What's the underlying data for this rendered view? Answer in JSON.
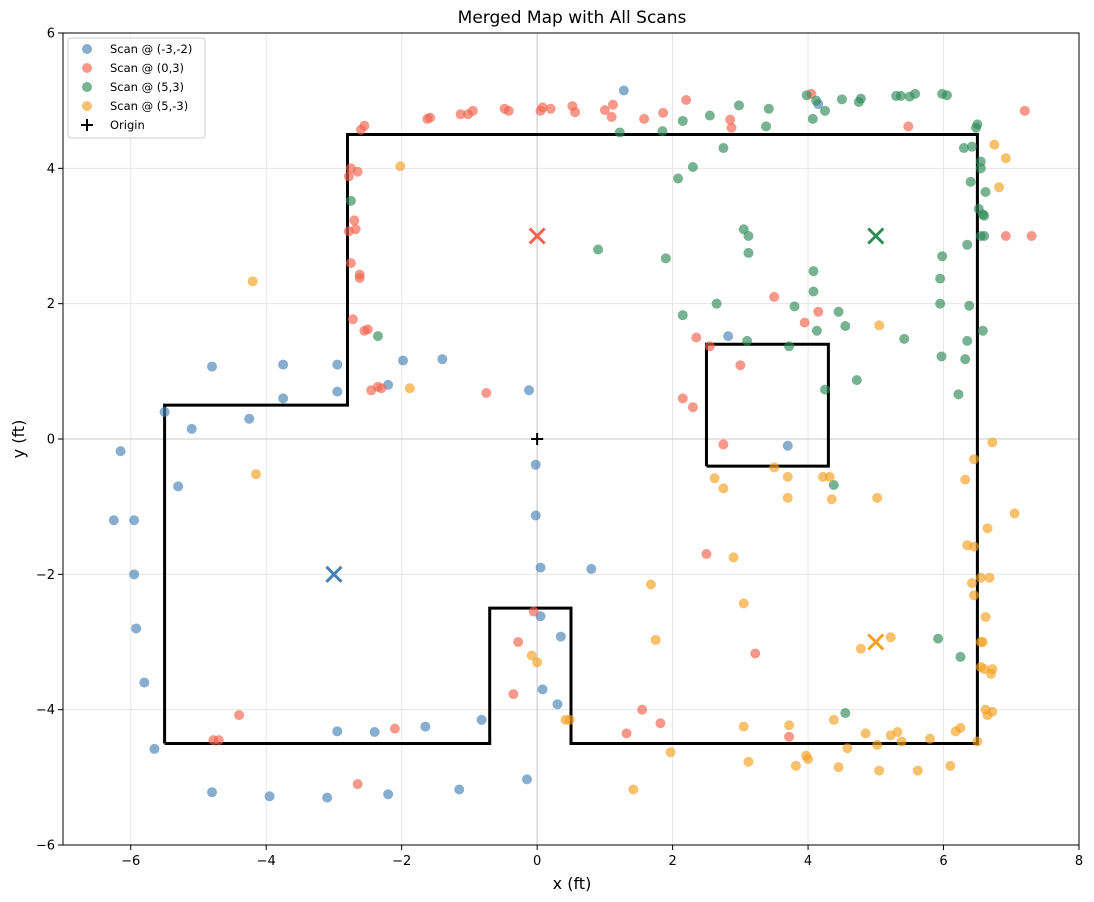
{
  "chart_data": {
    "type": "scatter",
    "title": "Merged Map with All Scans",
    "xlabel": "x (ft)",
    "ylabel": "y (ft)",
    "xlim": [
      -7,
      8
    ],
    "ylim": [
      -6,
      6
    ],
    "xticks": [
      -6,
      -4,
      -2,
      0,
      2,
      4,
      6,
      8
    ],
    "yticks": [
      -6,
      -4,
      -2,
      0,
      2,
      4,
      6
    ],
    "grid": true,
    "legend_position": "top-left",
    "colors": {
      "scan1": "#4682b4",
      "scan2": "#f4614d",
      "scan3": "#2e8b57",
      "scan4": "#f5a020",
      "walls": "#000000"
    },
    "walls": [
      [
        [
          -5.5,
          -4.5
        ],
        [
          -0.7,
          -4.5
        ],
        [
          -0.7,
          -2.5
        ],
        [
          0.5,
          -2.5
        ],
        [
          0.5,
          -4.5
        ],
        [
          6.5,
          -4.5
        ],
        [
          6.5,
          4.5
        ],
        [
          -2.8,
          4.5
        ],
        [
          -2.8,
          0.5
        ],
        [
          -5.5,
          0.5
        ],
        [
          -5.5,
          -4.5
        ]
      ],
      [
        [
          2.5,
          -0.4
        ],
        [
          4.3,
          -0.4
        ],
        [
          4.3,
          1.4
        ],
        [
          2.5,
          1.4
        ],
        [
          2.5,
          -0.4
        ]
      ]
    ],
    "series": [
      {
        "name": "Scan @ (-3,-2)",
        "scan_position": [
          -3,
          -2
        ],
        "points": [
          [
            -5.5,
            0.4
          ],
          [
            -5.1,
            0.15
          ],
          [
            -4.8,
            1.07
          ],
          [
            -4.25,
            0.3
          ],
          [
            -3.75,
            1.1
          ],
          [
            -3.75,
            0.6
          ],
          [
            -2.95,
            1.1
          ],
          [
            -2.95,
            0.7
          ],
          [
            -2.2,
            0.8
          ],
          [
            -1.98,
            1.16
          ],
          [
            -1.4,
            1.18
          ],
          [
            -0.12,
            0.72
          ],
          [
            -6.15,
            -0.18
          ],
          [
            -5.3,
            -0.7
          ],
          [
            -6.25,
            -1.2
          ],
          [
            -5.95,
            -1.2
          ],
          [
            -5.95,
            -2.0
          ],
          [
            -5.92,
            -2.8
          ],
          [
            -5.8,
            -3.6
          ],
          [
            -5.65,
            -4.58
          ],
          [
            -4.8,
            -5.22
          ],
          [
            -3.95,
            -5.28
          ],
          [
            -3.1,
            -5.3
          ],
          [
            -2.2,
            -5.25
          ],
          [
            -1.15,
            -5.18
          ],
          [
            -0.15,
            -5.03
          ],
          [
            -2.95,
            -4.32
          ],
          [
            -2.4,
            -4.33
          ],
          [
            -1.65,
            -4.25
          ],
          [
            -0.82,
            -4.15
          ],
          [
            0.08,
            -3.7
          ],
          [
            0.3,
            -3.92
          ],
          [
            0.35,
            -2.92
          ],
          [
            0.05,
            -2.62
          ],
          [
            0.05,
            -1.9
          ],
          [
            -0.02,
            -0.38
          ],
          [
            -0.02,
            -1.13
          ],
          [
            0.8,
            -1.92
          ],
          [
            1.28,
            5.15
          ],
          [
            2.82,
            1.52
          ],
          [
            3.7,
            -0.1
          ],
          [
            4.15,
            4.95
          ]
        ]
      },
      {
        "name": "Scan @ (0,3)",
        "scan_position": [
          0,
          3
        ],
        "points": [
          [
            -2.55,
            4.63
          ],
          [
            -2.6,
            4.57
          ],
          [
            -1.62,
            4.73
          ],
          [
            -1.58,
            4.75
          ],
          [
            -1.13,
            4.8
          ],
          [
            -1.02,
            4.8
          ],
          [
            -0.95,
            4.85
          ],
          [
            -0.48,
            4.88
          ],
          [
            -0.42,
            4.85
          ],
          [
            0.05,
            4.85
          ],
          [
            0.08,
            4.9
          ],
          [
            0.2,
            4.88
          ],
          [
            0.52,
            4.92
          ],
          [
            0.56,
            4.83
          ],
          [
            1,
            4.86
          ],
          [
            1.1,
            4.76
          ],
          [
            1.12,
            4.94
          ],
          [
            1.58,
            4.73
          ],
          [
            1.86,
            4.82
          ],
          [
            2.2,
            5.01
          ],
          [
            2.85,
            4.72
          ],
          [
            2.87,
            4.6
          ],
          [
            4.05,
            5.1
          ],
          [
            5.48,
            4.62
          ],
          [
            7.2,
            4.85
          ],
          [
            -2.75,
            4.0
          ],
          [
            -2.78,
            3.88
          ],
          [
            -2.65,
            3.95
          ],
          [
            -2.7,
            3.23
          ],
          [
            -2.78,
            3.07
          ],
          [
            -2.68,
            3.1
          ],
          [
            -2.75,
            2.6
          ],
          [
            -2.62,
            2.43
          ],
          [
            -2.62,
            2.38
          ],
          [
            -2.72,
            1.77
          ],
          [
            -2.55,
            1.6
          ],
          [
            -2.5,
            1.62
          ],
          [
            -2.45,
            0.72
          ],
          [
            -2.35,
            0.77
          ],
          [
            -2.3,
            0.75
          ],
          [
            -0.75,
            0.68
          ],
          [
            2.15,
            0.6
          ],
          [
            2.3,
            0.47
          ],
          [
            2.35,
            1.5
          ],
          [
            2.55,
            1.37
          ],
          [
            3.0,
            1.09
          ],
          [
            3.5,
            2.1
          ],
          [
            3.95,
            1.72
          ],
          [
            4.15,
            1.88
          ],
          [
            2.75,
            -0.08
          ],
          [
            2.5,
            -1.7
          ],
          [
            3.22,
            -3.17
          ],
          [
            -0.05,
            -2.55
          ],
          [
            -0.28,
            -3.0
          ],
          [
            -0.35,
            -3.77
          ],
          [
            1.55,
            -4.0
          ],
          [
            1.82,
            -4.2
          ],
          [
            1.32,
            -4.35
          ],
          [
            -2.1,
            -4.28
          ],
          [
            -4.4,
            -4.08
          ],
          [
            -4.7,
            -4.45
          ],
          [
            -4.78,
            -4.45
          ],
          [
            -2.65,
            -5.1
          ],
          [
            3.72,
            -4.4
          ],
          [
            6.92,
            3.0
          ],
          [
            7.3,
            3.0
          ]
        ]
      },
      {
        "name": "Scan @ (5,3)",
        "scan_position": [
          5,
          3
        ],
        "points": [
          [
            1.22,
            4.53
          ],
          [
            1.85,
            4.55
          ],
          [
            2.55,
            4.78
          ],
          [
            2.75,
            4.3
          ],
          [
            2.15,
            4.7
          ],
          [
            2.3,
            4.02
          ],
          [
            2.08,
            3.85
          ],
          [
            1.9,
            2.67
          ],
          [
            0.9,
            2.8
          ],
          [
            3.05,
            3.1
          ],
          [
            3.12,
            3.0
          ],
          [
            3.12,
            2.75
          ],
          [
            2.65,
            2.0
          ],
          [
            2.15,
            1.83
          ],
          [
            3.1,
            1.45
          ],
          [
            2.98,
            4.93
          ],
          [
            3.38,
            4.62
          ],
          [
            3.42,
            4.88
          ],
          [
            3.98,
            5.08
          ],
          [
            4.07,
            4.73
          ],
          [
            4.12,
            5.0
          ],
          [
            4.25,
            4.85
          ],
          [
            4.5,
            5.02
          ],
          [
            4.75,
            4.98
          ],
          [
            4.78,
            5.03
          ],
          [
            5.3,
            5.07
          ],
          [
            5.37,
            5.07
          ],
          [
            5.5,
            5.06
          ],
          [
            5.58,
            5.1
          ],
          [
            5.98,
            5.1
          ],
          [
            6.05,
            5.08
          ],
          [
            6.48,
            4.6
          ],
          [
            6.5,
            4.65
          ],
          [
            6.3,
            4.3
          ],
          [
            6.42,
            4.32
          ],
          [
            6.55,
            4.1
          ],
          [
            6.55,
            4.0
          ],
          [
            6.4,
            3.8
          ],
          [
            6.62,
            3.65
          ],
          [
            6.52,
            3.4
          ],
          [
            6.58,
            3.32
          ],
          [
            6.6,
            3.3
          ],
          [
            6.55,
            3.0
          ],
          [
            6.6,
            3.0
          ],
          [
            6.35,
            2.87
          ],
          [
            5.98,
            2.7
          ],
          [
            5.95,
            2.37
          ],
          [
            5.95,
            2.0
          ],
          [
            6.38,
            1.97
          ],
          [
            6.58,
            1.6
          ],
          [
            6.35,
            1.45
          ],
          [
            5.97,
            1.22
          ],
          [
            6.32,
            1.18
          ],
          [
            6.22,
            0.66
          ],
          [
            4.08,
            2.48
          ],
          [
            4.08,
            2.18
          ],
          [
            3.8,
            1.96
          ],
          [
            4.13,
            1.6
          ],
          [
            4.45,
            1.88
          ],
          [
            4.55,
            1.67
          ],
          [
            5.42,
            1.48
          ],
          [
            3.72,
            1.37
          ],
          [
            4.25,
            0.73
          ],
          [
            4.72,
            0.87
          ],
          [
            -2.35,
            1.52
          ],
          [
            -2.75,
            3.52
          ],
          [
            4.38,
            -0.68
          ],
          [
            5.92,
            -2.95
          ],
          [
            6.25,
            -3.22
          ],
          [
            4.55,
            -4.05
          ]
        ]
      },
      {
        "name": "Scan @ (5,-3)",
        "scan_position": [
          5,
          -3
        ],
        "points": [
          [
            -2.02,
            4.03
          ],
          [
            -4.2,
            2.33
          ],
          [
            -1.88,
            0.75
          ],
          [
            -4.15,
            -0.52
          ],
          [
            5.05,
            1.68
          ],
          [
            6.72,
            -0.05
          ],
          [
            6.45,
            -0.3
          ],
          [
            6.32,
            -0.6
          ],
          [
            3.5,
            -0.42
          ],
          [
            3.7,
            -0.56
          ],
          [
            4.22,
            -0.56
          ],
          [
            4.32,
            -0.56
          ],
          [
            4.35,
            -0.89
          ],
          [
            3.7,
            -0.87
          ],
          [
            2.62,
            -0.58
          ],
          [
            2.75,
            -0.73
          ],
          [
            5.02,
            -0.87
          ],
          [
            6.65,
            -1.32
          ],
          [
            6.35,
            -1.57
          ],
          [
            6.45,
            -1.59
          ],
          [
            6.42,
            -2.13
          ],
          [
            6.55,
            -2.05
          ],
          [
            6.68,
            -2.05
          ],
          [
            6.45,
            -2.31
          ],
          [
            6.62,
            -2.63
          ],
          [
            6.58,
            -3.0
          ],
          [
            6.55,
            -3.37
          ],
          [
            6.6,
            -3.4
          ],
          [
            6.72,
            -3.4
          ],
          [
            6.7,
            -3.47
          ],
          [
            6.62,
            -4.0
          ],
          [
            6.72,
            -4.03
          ],
          [
            6.65,
            -4.08
          ],
          [
            6.5,
            -4.47
          ],
          [
            6.18,
            -4.32
          ],
          [
            6.25,
            -4.27
          ],
          [
            1.68,
            -2.15
          ],
          [
            1.75,
            -2.97
          ],
          [
            2.9,
            -1.75
          ],
          [
            3.05,
            -2.43
          ],
          [
            -0.08,
            -3.2
          ],
          [
            0.0,
            -3.3
          ],
          [
            0.42,
            -4.15
          ],
          [
            0.48,
            -4.15
          ],
          [
            1.42,
            -5.18
          ],
          [
            1.97,
            -4.63
          ],
          [
            3.05,
            -4.25
          ],
          [
            3.12,
            -4.77
          ],
          [
            3.72,
            -4.23
          ],
          [
            3.82,
            -4.83
          ],
          [
            3.97,
            -4.68
          ],
          [
            4.0,
            -4.73
          ],
          [
            4.38,
            -4.15
          ],
          [
            4.45,
            -4.85
          ],
          [
            4.58,
            -4.57
          ],
          [
            4.85,
            -4.35
          ],
          [
            5.02,
            -4.52
          ],
          [
            5.05,
            -4.9
          ],
          [
            5.22,
            -4.38
          ],
          [
            5.32,
            -4.33
          ],
          [
            5.38,
            -4.47
          ],
          [
            5.62,
            -4.9
          ],
          [
            5.8,
            -4.43
          ],
          [
            6.1,
            -4.83
          ],
          [
            4.78,
            -3.1
          ],
          [
            5.22,
            -2.93
          ],
          [
            7.05,
            -1.1
          ],
          [
            6.75,
            4.35
          ],
          [
            6.82,
            3.72
          ],
          [
            6.92,
            4.15
          ],
          [
            6.55,
            -3.0
          ]
        ]
      }
    ],
    "scan_markers": [
      {
        "series": 0,
        "position": [
          -3,
          -2
        ]
      },
      {
        "series": 1,
        "position": [
          0,
          3
        ]
      },
      {
        "series": 2,
        "position": [
          5,
          3
        ]
      },
      {
        "series": 3,
        "position": [
          5,
          -3
        ]
      }
    ],
    "origin": {
      "name": "Origin",
      "position": [
        0,
        0
      ]
    }
  }
}
